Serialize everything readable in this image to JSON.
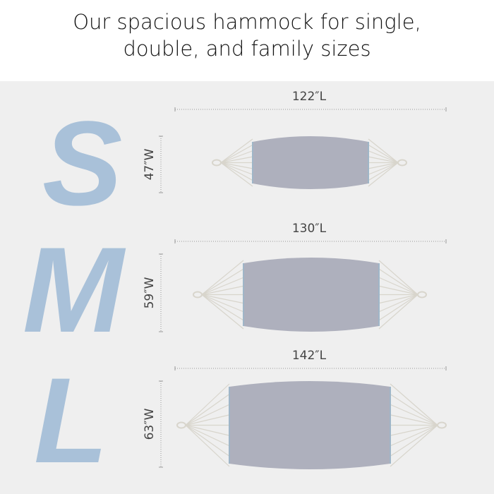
{
  "header": {
    "title_lines": [
      "Our spacious hammock for single,",
      "double, and family sizes"
    ]
  },
  "sizes": [
    {
      "letter": "S",
      "length": "122″L",
      "width": "47″W"
    },
    {
      "letter": "M",
      "length": "130″L",
      "width": "59″W"
    },
    {
      "letter": "L",
      "length": "142″L",
      "width": "63″W"
    }
  ]
}
